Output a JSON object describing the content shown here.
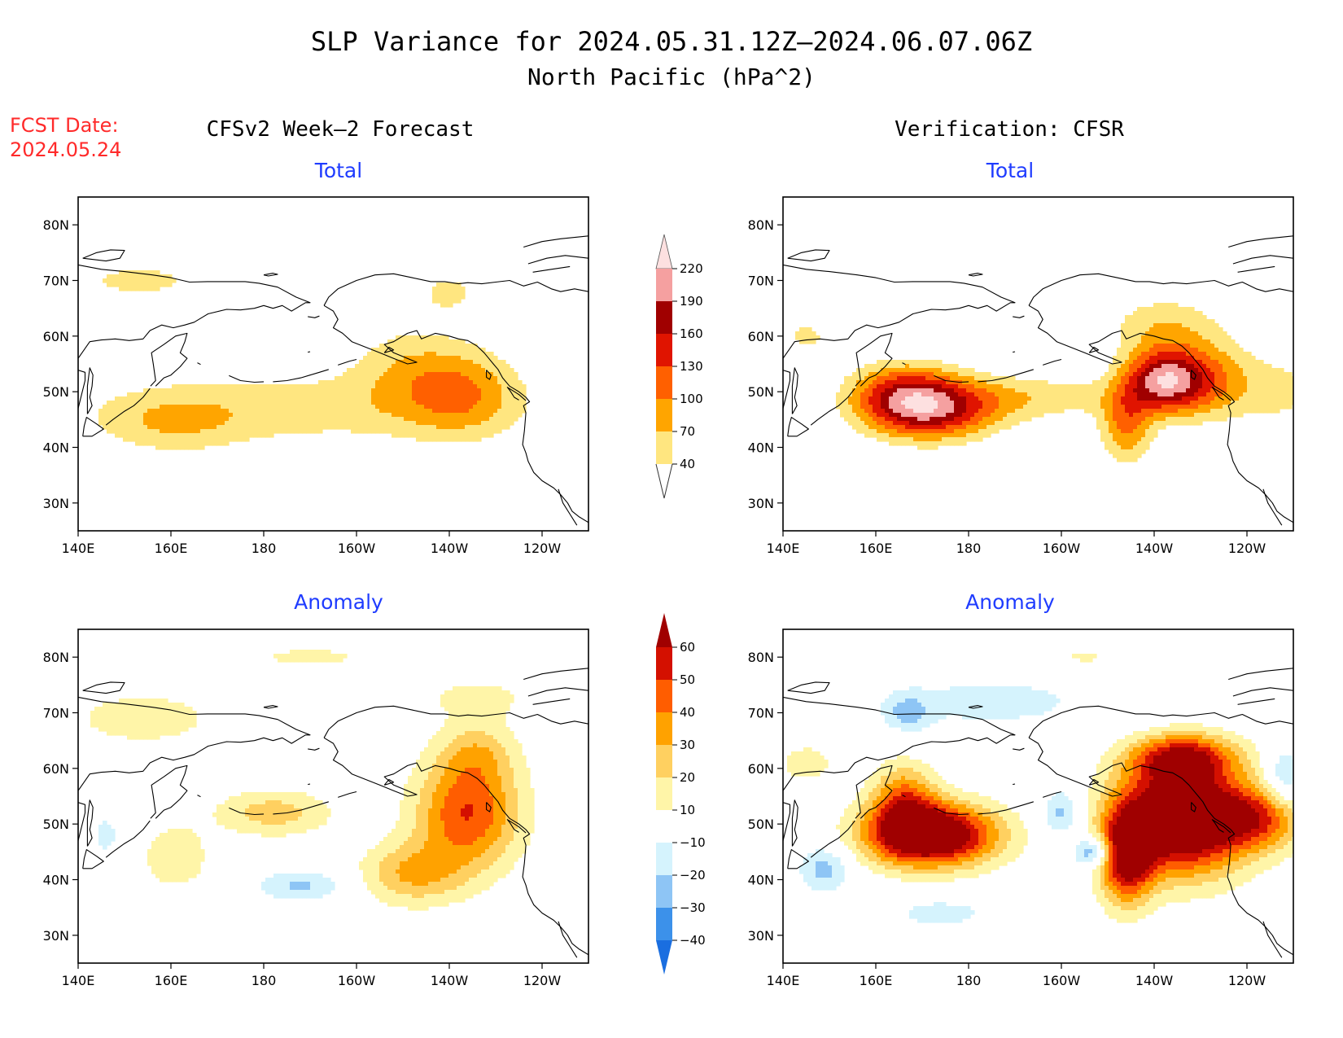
{
  "header": {
    "title_line1": "SLP Variance for 2024.05.31.12Z–2024.06.07.06Z",
    "title_line2": "North Pacific (hPa^2)",
    "fcst_date_label": "FCST Date:",
    "fcst_date_value": "2024.05.24",
    "left_column_title": "CFSv2 Week–2 Forecast",
    "right_column_title": "Verification: CFSR"
  },
  "colors": {
    "title": "#000000",
    "fcst_date": "#ff2a2a",
    "panel_subtitle": "#1f3cff",
    "coast": "#000000"
  },
  "axes": {
    "x_ticks": [
      "140E",
      "160E",
      "180",
      "160W",
      "140W",
      "120W"
    ],
    "x_tick_lons": [
      140,
      160,
      180,
      200,
      220,
      240
    ],
    "y_ticks": [
      "80N",
      "70N",
      "60N",
      "50N",
      "40N",
      "30N"
    ],
    "y_tick_lats": [
      80,
      70,
      60,
      50,
      40,
      30
    ],
    "lon_range_east": [
      140,
      250
    ],
    "lat_range": [
      25,
      85
    ]
  },
  "colorbars": {
    "total": {
      "labels": [
        "220",
        "190",
        "160",
        "130",
        "100",
        "70",
        "40"
      ],
      "levels": [
        40,
        70,
        100,
        130,
        160,
        190,
        220
      ],
      "colors": [
        "#ffe680",
        "#ffa500",
        "#ff6000",
        "#e01400",
        "#a00000",
        "#f5a0a0",
        "#fde0e0"
      ]
    },
    "anomaly": {
      "labels": [
        "60",
        "50",
        "40",
        "30",
        "20",
        "10",
        "−10",
        "−20",
        "−30",
        "−40"
      ],
      "levels": [
        -40,
        -30,
        -20,
        -10,
        10,
        20,
        30,
        40,
        50,
        60
      ],
      "colors": [
        "#1a6ee0",
        "#3c91ea",
        "#8ec5f5",
        "#d5f3fd",
        "#ffffff",
        "#fff5a8",
        "#ffd060",
        "#ffa200",
        "#ff5d00",
        "#d41000",
        "#a00000"
      ]
    }
  },
  "chart_data": [
    {
      "type": "heatmap",
      "panel": "forecast-total",
      "title": "Total",
      "column": "CFSv2 Week–2 Forecast",
      "units": "hPa^2",
      "xlim_lon_east": [
        140,
        250
      ],
      "ylim_lat": [
        25,
        85
      ],
      "features": [
        {
          "lon": 185,
          "lat": 47,
          "value": 55,
          "sx": 33,
          "sy": 5
        },
        {
          "lon": 160,
          "lat": 44,
          "value": 45,
          "sx": 11,
          "sy": 4
        },
        {
          "lon": 223,
          "lat": 50,
          "value": 80,
          "sx": 9,
          "sy": 6
        },
        {
          "lon": 210,
          "lat": 55,
          "value": 45,
          "sx": 9,
          "sy": 6
        },
        {
          "lon": 220,
          "lat": 68,
          "value": 45,
          "sx": 6,
          "sy": 3
        },
        {
          "lon": 153,
          "lat": 70,
          "value": 48,
          "sx": 13,
          "sy": 3
        }
      ]
    },
    {
      "type": "heatmap",
      "panel": "verification-total",
      "title": "Total",
      "column": "Verification: CFSR",
      "units": "hPa^2",
      "xlim_lon_east": [
        140,
        250
      ],
      "ylim_lat": [
        25,
        85
      ],
      "features": [
        {
          "lon": 172,
          "lat": 47,
          "value": 175,
          "sx": 10,
          "sy": 4
        },
        {
          "lon": 165,
          "lat": 50,
          "value": 90,
          "sx": 8,
          "sy": 4
        },
        {
          "lon": 222,
          "lat": 52,
          "value": 185,
          "sx": 6,
          "sy": 4
        },
        {
          "lon": 214,
          "lat": 44,
          "value": 100,
          "sx": 4,
          "sy": 5
        },
        {
          "lon": 232,
          "lat": 52,
          "value": 90,
          "sx": 7,
          "sy": 5
        },
        {
          "lon": 196,
          "lat": 49,
          "value": 55,
          "sx": 12,
          "sy": 3
        },
        {
          "lon": 222,
          "lat": 62,
          "value": 60,
          "sx": 9,
          "sy": 4
        },
        {
          "lon": 145,
          "lat": 60,
          "value": 45,
          "sx": 5,
          "sy": 3
        },
        {
          "lon": 248,
          "lat": 50,
          "value": 45,
          "sx": 7,
          "sy": 5
        }
      ]
    },
    {
      "type": "heatmap",
      "panel": "forecast-anomaly",
      "title": "Anomaly",
      "column": "CFSv2 Week–2 Forecast",
      "units": "hPa^2",
      "xlim_lon_east": [
        140,
        250
      ],
      "ylim_lat": [
        25,
        85
      ],
      "features": [
        {
          "lon": 224,
          "lat": 52,
          "value": 50,
          "sx": 8,
          "sy": 7
        },
        {
          "lon": 212,
          "lat": 41,
          "value": 30,
          "sx": 8,
          "sy": 4
        },
        {
          "lon": 226,
          "lat": 63,
          "value": 20,
          "sx": 6,
          "sy": 4
        },
        {
          "lon": 182,
          "lat": 52,
          "value": 25,
          "sx": 9,
          "sy": 3
        },
        {
          "lon": 161,
          "lat": 44,
          "value": 20,
          "sx": 5,
          "sy": 4
        },
        {
          "lon": 188,
          "lat": 39,
          "value": -22,
          "sx": 7,
          "sy": 2
        },
        {
          "lon": 154,
          "lat": 69,
          "value": 20,
          "sx": 10,
          "sy": 3
        },
        {
          "lon": 190,
          "lat": 80,
          "value": 12,
          "sx": 13,
          "sy": 2
        },
        {
          "lon": 226,
          "lat": 73,
          "value": 12,
          "sx": 11,
          "sy": 3
        },
        {
          "lon": 146,
          "lat": 48,
          "value": -12,
          "sx": 3,
          "sy": 4
        }
      ]
    },
    {
      "type": "heatmap",
      "panel": "verification-anomaly",
      "title": "Anomaly",
      "column": "Verification: CFSR",
      "units": "hPa^2",
      "xlim_lon_east": [
        140,
        250
      ],
      "ylim_lat": [
        25,
        85
      ],
      "features": [
        {
          "lon": 172,
          "lat": 48,
          "value": 85,
          "sx": 10,
          "sy": 4
        },
        {
          "lon": 166,
          "lat": 54,
          "value": 40,
          "sx": 5,
          "sy": 5
        },
        {
          "lon": 226,
          "lat": 51,
          "value": 90,
          "sx": 10,
          "sy": 7
        },
        {
          "lon": 214,
          "lat": 44,
          "value": 60,
          "sx": 4,
          "sy": 6
        },
        {
          "lon": 226,
          "lat": 62,
          "value": 50,
          "sx": 8,
          "sy": 3
        },
        {
          "lon": 243,
          "lat": 51,
          "value": 40,
          "sx": 7,
          "sy": 4
        },
        {
          "lon": 207,
          "lat": 45,
          "value": -40,
          "sx": 3,
          "sy": 2
        },
        {
          "lon": 200,
          "lat": 52,
          "value": -25,
          "sx": 3,
          "sy": 3
        },
        {
          "lon": 149,
          "lat": 42,
          "value": -25,
          "sx": 4,
          "sy": 3
        },
        {
          "lon": 167,
          "lat": 70,
          "value": -22,
          "sx": 3,
          "sy": 2
        },
        {
          "lon": 174,
          "lat": 34,
          "value": -15,
          "sx": 8,
          "sy": 2
        },
        {
          "lon": 248,
          "lat": 58,
          "value": -25,
          "sx": 3,
          "sy": 4
        },
        {
          "lon": 185,
          "lat": 72,
          "value": -12,
          "sx": 24,
          "sy": 5
        },
        {
          "lon": 205,
          "lat": 80,
          "value": 15,
          "sx": 4,
          "sy": 1
        },
        {
          "lon": 145,
          "lat": 61,
          "value": 15,
          "sx": 5,
          "sy": 3
        }
      ]
    }
  ]
}
